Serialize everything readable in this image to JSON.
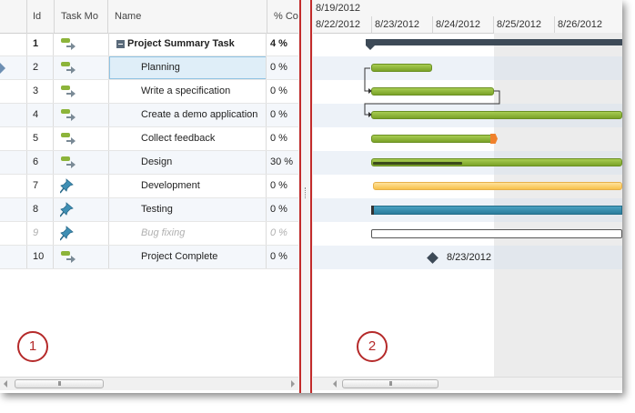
{
  "grid": {
    "columns": {
      "id": "Id",
      "mode": "Task Mo",
      "name": "Name",
      "pct": "% Com"
    },
    "rows": [
      {
        "id": "1",
        "name": "Project Summary Task",
        "pct": "4 %",
        "mode": "auto"
      },
      {
        "id": "2",
        "name": "Planning",
        "pct": "0 %",
        "mode": "auto"
      },
      {
        "id": "3",
        "name": "Write a specification",
        "pct": "0 %",
        "mode": "auto"
      },
      {
        "id": "4",
        "name": "Create a demo application",
        "pct": "0 %",
        "mode": "auto"
      },
      {
        "id": "5",
        "name": "Collect feedback",
        "pct": "0 %",
        "mode": "auto"
      },
      {
        "id": "6",
        "name": "Design",
        "pct": "30 %",
        "mode": "auto"
      },
      {
        "id": "7",
        "name": "Development",
        "pct": "0 %",
        "mode": "manual"
      },
      {
        "id": "8",
        "name": "Testing",
        "pct": "0 %",
        "mode": "manual"
      },
      {
        "id": "9",
        "name": "Bug fixing",
        "pct": "0 %",
        "mode": "manual"
      },
      {
        "id": "10",
        "name": "Project Complete",
        "pct": "0 %",
        "mode": "auto"
      }
    ],
    "scroll_grip": "III"
  },
  "timeline": {
    "week_label": "8/19/2012",
    "days": [
      "8/22/2012",
      "8/23/2012",
      "8/24/2012",
      "8/25/2012",
      "8/26/2012"
    ]
  },
  "gantt": {
    "milestone_label": "8/23/2012",
    "scroll_grip": "III"
  },
  "callouts": {
    "one": "1",
    "two": "2"
  },
  "colors": {
    "task_bar": "#8cb43a",
    "summary_bar": "#3d4a57",
    "manual_bar": "#f8c14a",
    "testing_bar": "#2a7c9c",
    "callout": "#b52a2a",
    "selection": "#dfeef8"
  },
  "icons": {
    "auto_scheduled": "auto-schedule-icon",
    "manual_scheduled": "pushpin-icon"
  }
}
